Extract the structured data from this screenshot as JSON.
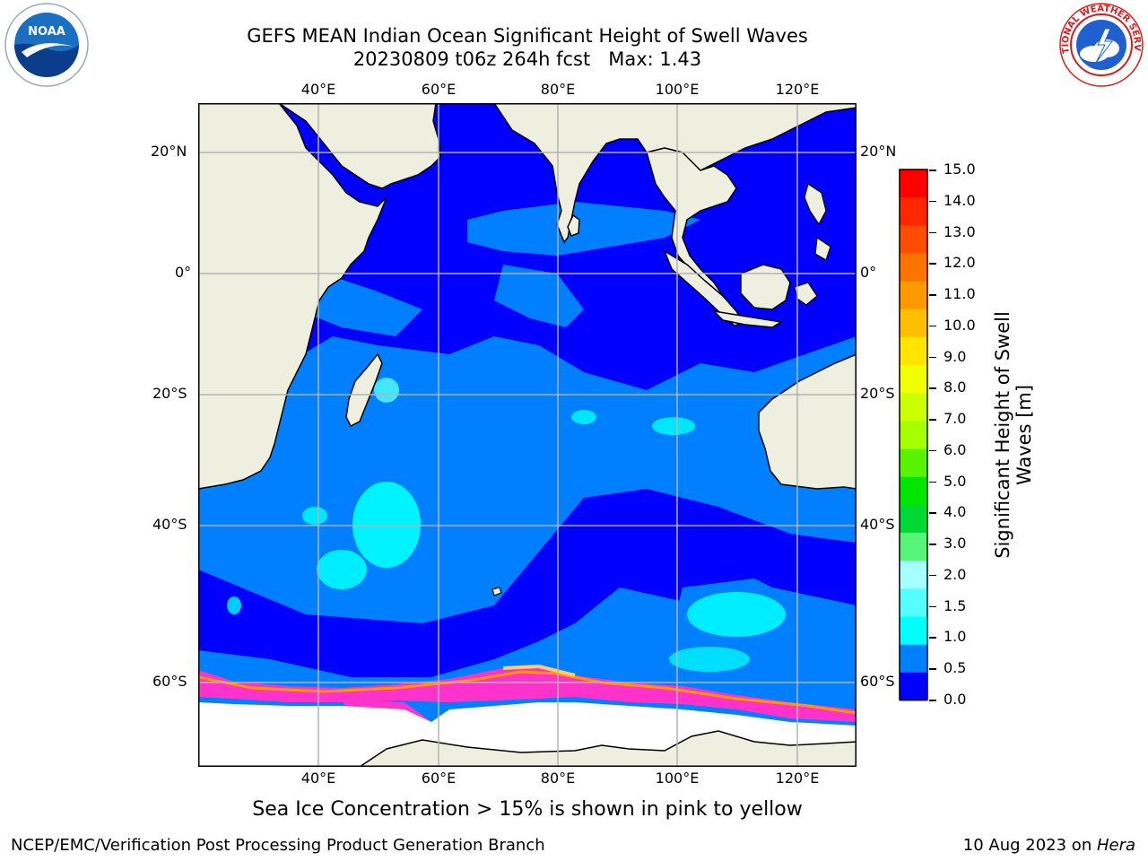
{
  "header": {
    "title_line1": "GEFS MEAN Indian Ocean Significant Height of Swell Waves",
    "title_line2": "20230809 t06z 264h fcst   Max: 1.43"
  },
  "map": {
    "lon_labels": [
      "40°E",
      "60°E",
      "80°E",
      "100°E",
      "120°E"
    ],
    "lat_labels": [
      "20°N",
      "0°",
      "20°S",
      "40°S",
      "60°S"
    ],
    "colors": {
      "land": "#efefdf",
      "ice_free": "#ffffff",
      "grid": "#b3b3b3",
      "coast": "#000000"
    }
  },
  "colorbar": {
    "label_line1": "Significant Height of Swell",
    "label_line2": "Waves [m]",
    "ticks": [
      "15.0",
      "14.0",
      "13.0",
      "12.0",
      "11.0",
      "10.0",
      "9.0",
      "8.0",
      "7.0",
      "6.0",
      "5.0",
      "4.0",
      "3.0",
      "2.0",
      "1.5",
      "1.0",
      "0.5",
      "0.0"
    ],
    "colors_top_to_bottom": [
      "#ff0000",
      "#ff2600",
      "#ff4d00",
      "#ff7300",
      "#ff9900",
      "#ffbf00",
      "#ffe500",
      "#f2ff00",
      "#ccff00",
      "#a6ff00",
      "#59f200",
      "#00e600",
      "#00d933",
      "#55f57a",
      "#a6ffff",
      "#55ffff",
      "#00ffff",
      "#0080ff",
      "#0000ff"
    ]
  },
  "logos": {
    "left_text": "NOAA",
    "right_text": "NATIONAL WEATHER SERVICE"
  },
  "footer": {
    "caption": "Sea Ice Concentration > 15% is shown in pink to yellow",
    "left": "NCEP/EMC/Verification Post Processing Product Generation Branch",
    "right_prefix": "10 Aug 2023 on ",
    "right_italic": "Hera"
  }
}
